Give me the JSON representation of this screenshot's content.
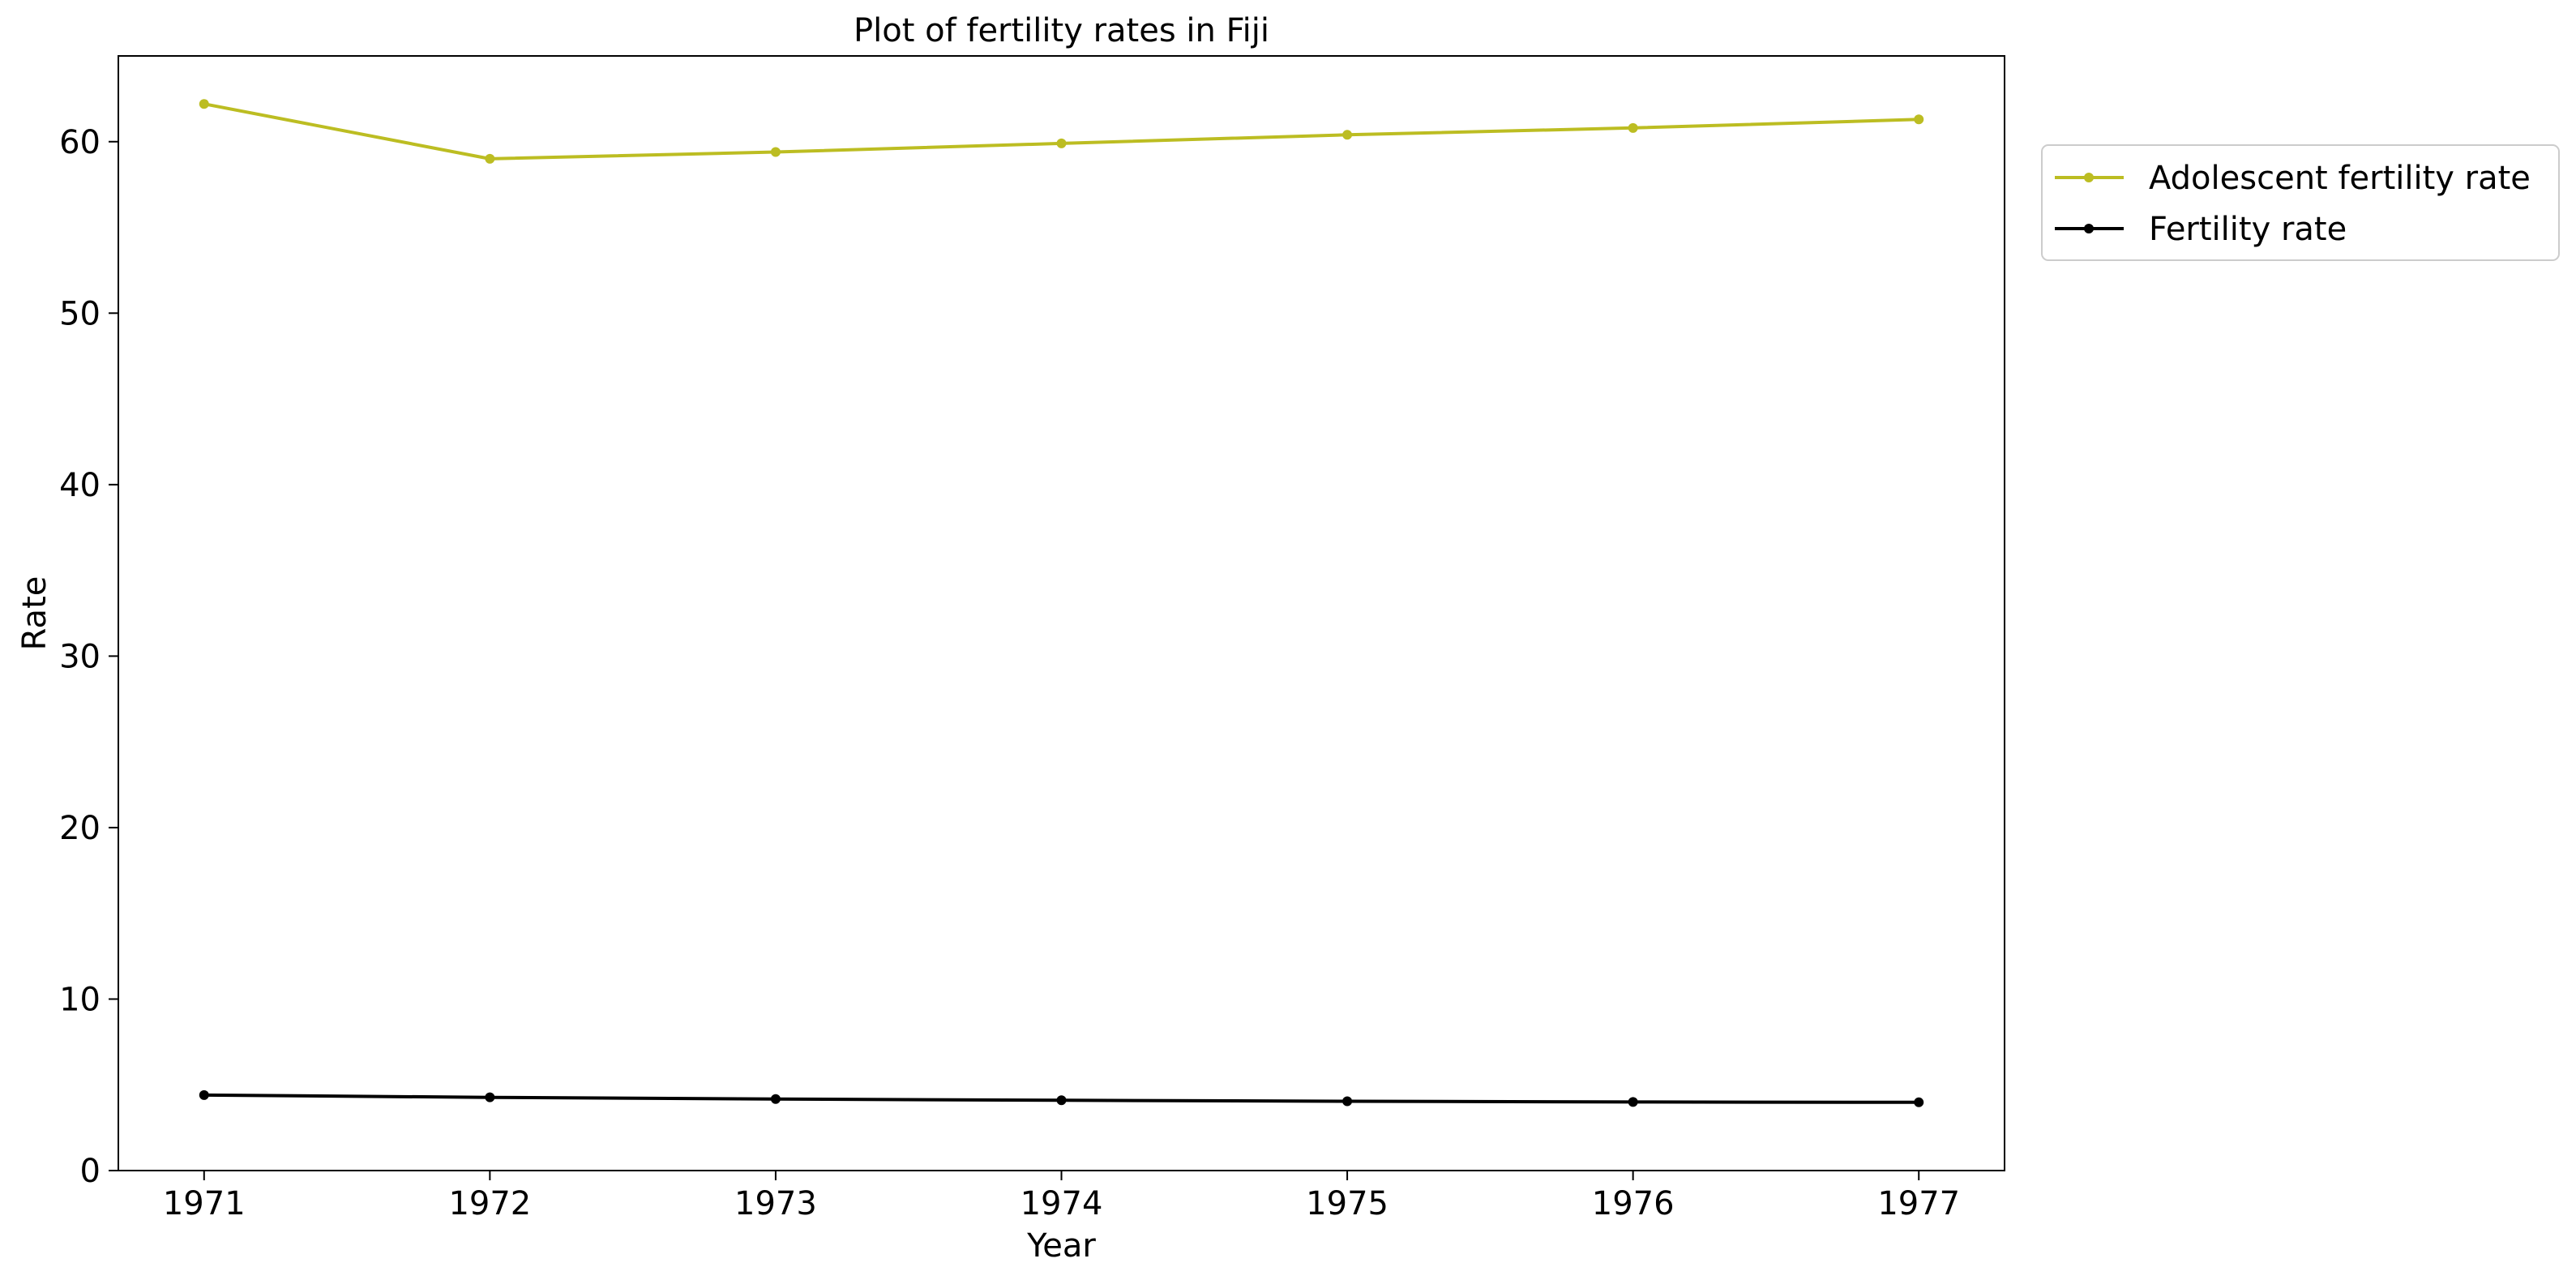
{
  "chart_data": {
    "type": "line",
    "title": "Plot of fertility rates in Fiji",
    "xlabel": "Year",
    "ylabel": "Rate",
    "x": [
      1971,
      1972,
      1973,
      1974,
      1975,
      1976,
      1977
    ],
    "xlim": [
      1970.7,
      1977.3
    ],
    "ylim": [
      0,
      65
    ],
    "yticks": [
      0,
      10,
      20,
      30,
      40,
      50,
      60
    ],
    "grid": false,
    "legend_position": "outside-top-right",
    "series": [
      {
        "name": "Adolescent fertility rate",
        "color": "#bcbd22",
        "marker": "dot",
        "values": [
          62.2,
          59.0,
          59.4,
          59.9,
          60.4,
          60.8,
          61.3
        ]
      },
      {
        "name": "Fertility rate",
        "color": "#000000",
        "marker": "dot",
        "values": [
          4.4,
          4.27,
          4.17,
          4.1,
          4.04,
          4.0,
          3.98
        ]
      }
    ]
  }
}
